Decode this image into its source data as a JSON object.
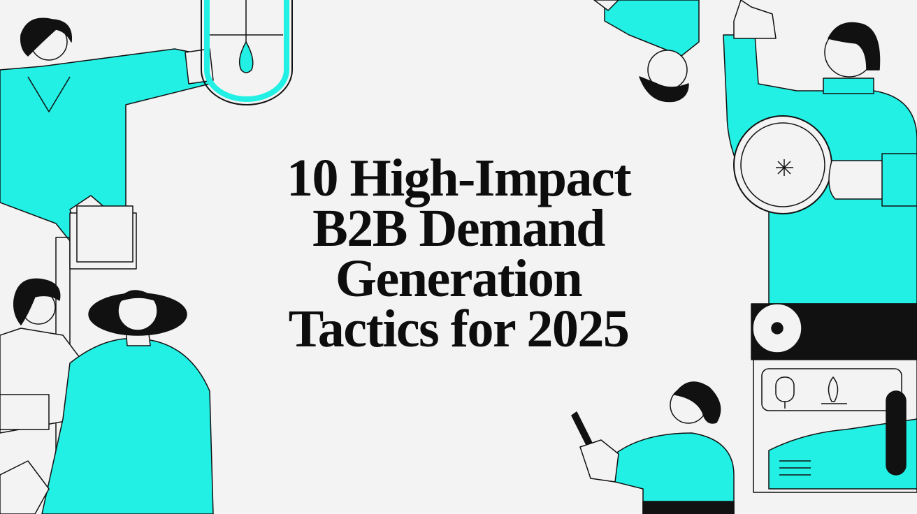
{
  "hero": {
    "title_lines": [
      "10 High-Impact",
      "B2B Demand",
      "Generation",
      "Tactics for 2025"
    ]
  },
  "colors": {
    "background": "#f2f3f2",
    "accent": "#22f0e4",
    "ink": "#0d0d0d"
  },
  "illustration": {
    "icons": [
      "people-collaborating-illustration",
      "test-tube-icon",
      "magnifying-glass-icon",
      "microphone-icon",
      "plant-icon",
      "smartphone-icon"
    ]
  }
}
